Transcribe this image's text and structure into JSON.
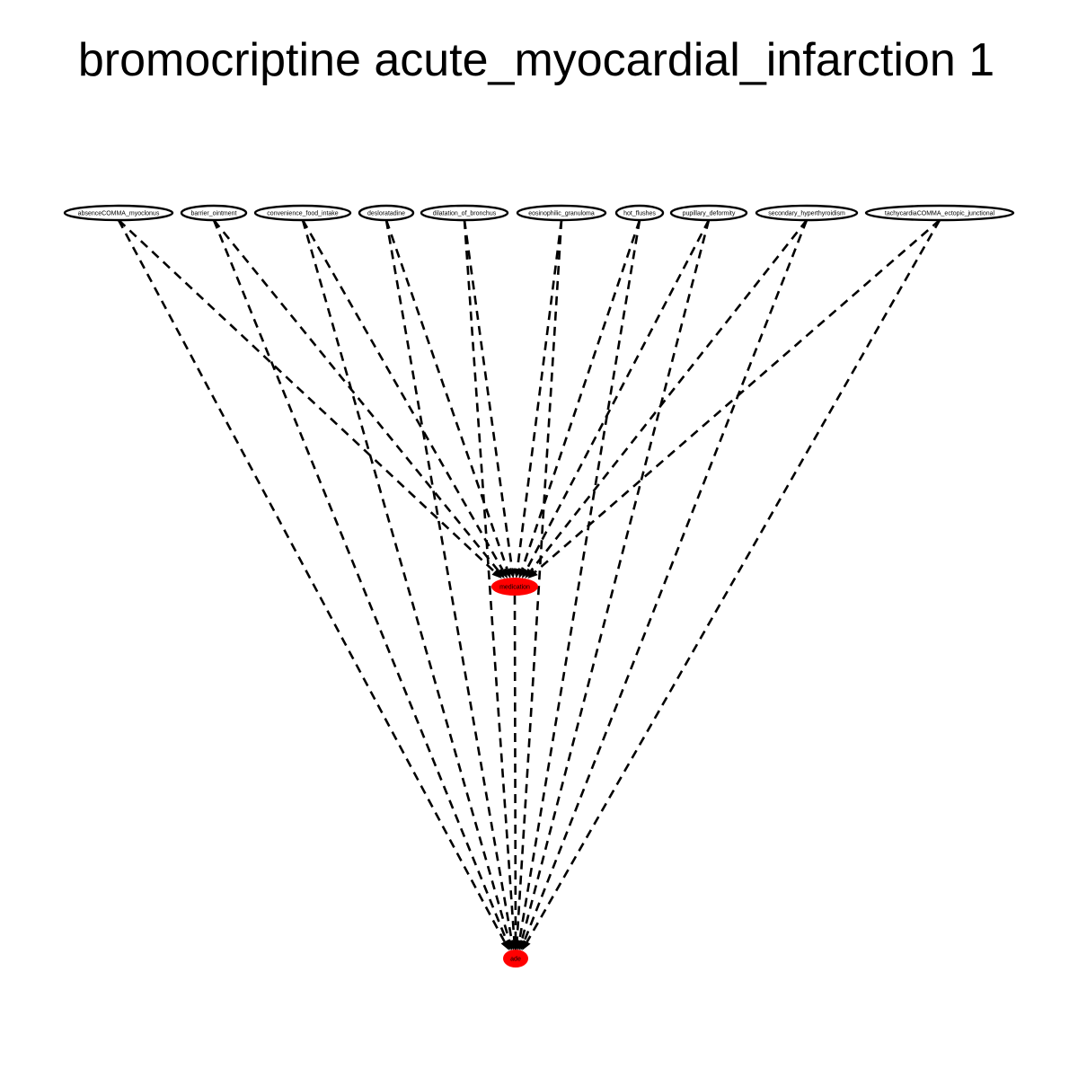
{
  "title": "bromocriptine acute_myocardial_infarction 1",
  "colors": {
    "highlight": "#ff0000",
    "node_fill": "#ffffff",
    "stroke": "#000000"
  },
  "graph": {
    "top_nodes": [
      {
        "id": "absenceCOMMA_myoclonus",
        "label": "absenceCOMMA_myoclonus"
      },
      {
        "id": "barrier_ointment",
        "label": "barrier_ointment"
      },
      {
        "id": "convenience_food_intake",
        "label": "convenience_food_intake"
      },
      {
        "id": "desloratadine",
        "label": "desloratadine"
      },
      {
        "id": "dilatation_of_bronchus",
        "label": "dilatation_of_bronchus"
      },
      {
        "id": "eosinophilic_granuloma",
        "label": "eosinophilic_granuloma"
      },
      {
        "id": "hot_flushes",
        "label": "hot_flushes"
      },
      {
        "id": "pupillary_deformity",
        "label": "pupillary_deformity"
      },
      {
        "id": "secondary_hyperthyroidism",
        "label": "secondary_hyperthyroidism"
      },
      {
        "id": "tachycardiaCOMMA_ectopic_junctional",
        "label": "tachycardiaCOMMA_ectopic_junctional"
      }
    ],
    "middle_node": {
      "id": "medication",
      "label": "medication"
    },
    "bottom_node": {
      "id": "ade",
      "label": "ade"
    },
    "edge_style": "dashed"
  }
}
